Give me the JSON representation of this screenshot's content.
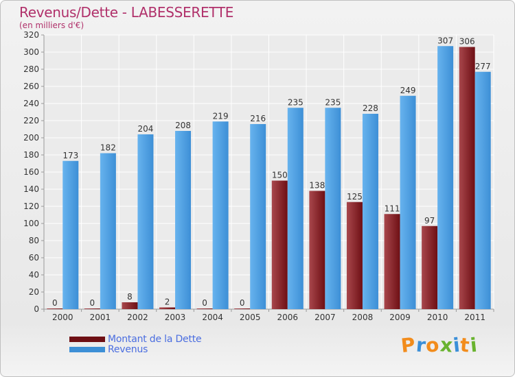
{
  "colors": {
    "dette": "#6e0f14",
    "dette_light": "#a8474c",
    "revenus": "#3d8fd6",
    "revenus_light": "#67b3ee",
    "title": "#b0306a",
    "legend_text": "#4a6de0"
  },
  "logo": {
    "text": "Proxiti",
    "letters": [
      {
        "ch": "P",
        "color": "#f28c1c"
      },
      {
        "ch": "r",
        "color": "#3b8fd8"
      },
      {
        "ch": "o",
        "color": "#f28c1c"
      },
      {
        "ch": "x",
        "color": "#69b32f"
      },
      {
        "ch": "i",
        "color": "#3b8fd8"
      },
      {
        "ch": "t",
        "color": "#f28c1c"
      },
      {
        "ch": "i",
        "color": "#69b32f"
      }
    ]
  },
  "chart_data": {
    "type": "bar",
    "title": "Revenus/Dette - LABESSERETTE",
    "subtitle": "(en milliers d'€)",
    "categories": [
      "2000",
      "2001",
      "2002",
      "2003",
      "2004",
      "2005",
      "2006",
      "2007",
      "2008",
      "2009",
      "2010",
      "2011"
    ],
    "series": [
      {
        "name": "Montant de la Dette",
        "values": [
          0,
          0,
          8,
          2,
          0,
          0,
          150,
          138,
          125,
          111,
          97,
          306
        ]
      },
      {
        "name": "Revenus",
        "values": [
          173,
          182,
          204,
          208,
          219,
          216,
          235,
          235,
          228,
          249,
          307,
          277
        ]
      }
    ],
    "ylim": [
      0,
      320
    ],
    "yticks": [
      0,
      20,
      40,
      60,
      80,
      100,
      120,
      140,
      160,
      180,
      200,
      220,
      240,
      260,
      280,
      300,
      320
    ],
    "grid": true,
    "legend_position": "bottom-left"
  }
}
